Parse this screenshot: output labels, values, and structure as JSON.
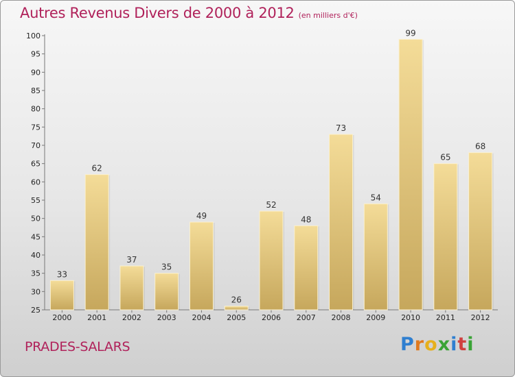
{
  "header": {
    "title": "Autres Revenus Divers de 2000 à 2012",
    "subtitle": "(en milliers d'€)"
  },
  "footer": {
    "location": "PRADES-SALARS",
    "logo": {
      "text": "Proxiti",
      "letters": [
        {
          "char": "P",
          "color": "#2f7fd0"
        },
        {
          "char": "r",
          "color": "#e07a1f"
        },
        {
          "char": "o",
          "color": "#e6b01d"
        },
        {
          "char": "x",
          "color": "#3aa336"
        },
        {
          "char": "i",
          "color": "#2f7fd0"
        },
        {
          "char": "t",
          "color": "#d04040"
        },
        {
          "char": "i",
          "color": "#3aa336"
        }
      ]
    }
  },
  "chart_data": {
    "type": "bar",
    "title": "Autres Revenus Divers de 2000 à 2012",
    "subtitle": "(en milliers d'€)",
    "categories": [
      "2000",
      "2001",
      "2002",
      "2003",
      "2004",
      "2005",
      "2006",
      "2007",
      "2008",
      "2009",
      "2010",
      "2011",
      "2012"
    ],
    "values": [
      33,
      62,
      37,
      35,
      49,
      26,
      52,
      48,
      73,
      54,
      99,
      65,
      68
    ],
    "xlabel": "",
    "ylabel": "",
    "ylim": [
      25,
      100
    ],
    "yticks": [
      25,
      30,
      35,
      40,
      45,
      50,
      55,
      60,
      65,
      70,
      75,
      80,
      85,
      90,
      95,
      100
    ],
    "grid": false,
    "legend": "none",
    "colors": {
      "bar_light": "#f3d994",
      "bar_dark": "#c8aa60",
      "axis": "#666666",
      "title": "#b0215a"
    }
  }
}
